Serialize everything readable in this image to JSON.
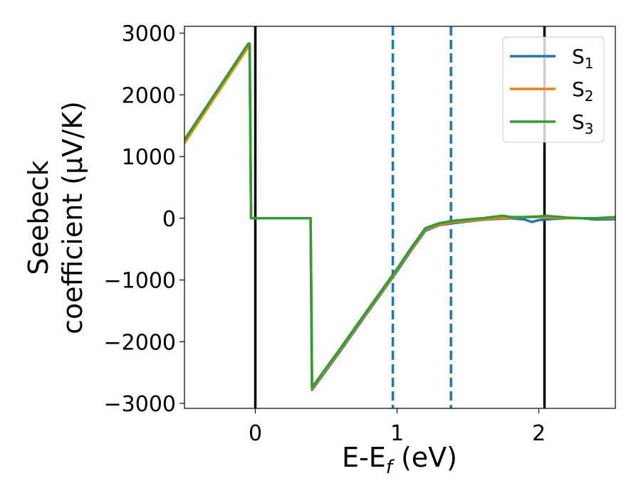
{
  "chart_data": {
    "type": "line",
    "title": "",
    "xlabel": "E-E_f (eV)",
    "ylabel_lines": [
      "Seebeck",
      "coefficient  (μV/K)"
    ],
    "xlim": [
      -0.5,
      2.54
    ],
    "ylim": [
      -3080,
      3110
    ],
    "xticks": [
      0,
      1,
      2
    ],
    "yticks": [
      -3000,
      -2000,
      -1000,
      0,
      1000,
      2000,
      3000
    ],
    "grid": false,
    "legend_position": "top-right",
    "legend_entries": [
      {
        "base": "S",
        "sub": "1",
        "color": "#1f77b4"
      },
      {
        "base": "S",
        "sub": "2",
        "color": "#ff7f0e"
      },
      {
        "base": "S",
        "sub": "3",
        "color": "#2ca02c"
      }
    ],
    "vertical_lines": [
      {
        "x": 0.0,
        "style": "solid",
        "color": "#000000"
      },
      {
        "x": 0.97,
        "style": "dashed",
        "color": "#1f77b4"
      },
      {
        "x": 1.38,
        "style": "dashed",
        "color": "#1f77b4"
      },
      {
        "x": 2.04,
        "style": "solid",
        "color": "#000000"
      }
    ],
    "series": [
      {
        "name": "S1",
        "color": "#1f77b4",
        "points": [
          [
            -0.5,
            1230
          ],
          [
            -0.05,
            2800
          ],
          [
            -0.04,
            2800
          ],
          [
            -0.03,
            0
          ],
          [
            0.39,
            0
          ],
          [
            0.4,
            -2780
          ],
          [
            0.6,
            -2150
          ],
          [
            0.8,
            -1500
          ],
          [
            1.0,
            -860
          ],
          [
            1.1,
            -520
          ],
          [
            1.2,
            -200
          ],
          [
            1.3,
            -110
          ],
          [
            1.4,
            -80
          ],
          [
            1.5,
            -50
          ],
          [
            1.6,
            -25
          ],
          [
            1.7,
            -10
          ],
          [
            1.8,
            0
          ],
          [
            1.9,
            -20
          ],
          [
            1.95,
            -60
          ],
          [
            2.0,
            -30
          ],
          [
            2.1,
            -10
          ],
          [
            2.2,
            0
          ],
          [
            2.3,
            0
          ],
          [
            2.4,
            -20
          ],
          [
            2.54,
            -15
          ]
        ]
      },
      {
        "name": "S2",
        "color": "#ff7f0e",
        "points": [
          [
            -0.5,
            1220
          ],
          [
            -0.05,
            2780
          ],
          [
            -0.04,
            2780
          ],
          [
            -0.03,
            0
          ],
          [
            0.39,
            0
          ],
          [
            0.4,
            -2760
          ],
          [
            0.6,
            -2130
          ],
          [
            0.8,
            -1480
          ],
          [
            1.0,
            -840
          ],
          [
            1.1,
            -500
          ],
          [
            1.2,
            -180
          ],
          [
            1.3,
            -100
          ],
          [
            1.4,
            -60
          ],
          [
            1.5,
            -40
          ],
          [
            1.6,
            -20
          ],
          [
            1.7,
            0
          ],
          [
            1.8,
            10
          ],
          [
            1.9,
            20
          ],
          [
            2.0,
            20
          ],
          [
            2.1,
            10
          ],
          [
            2.2,
            0
          ],
          [
            2.3,
            0
          ],
          [
            2.4,
            0
          ],
          [
            2.54,
            5
          ]
        ]
      },
      {
        "name": "S3",
        "color": "#2ca02c",
        "points": [
          [
            -0.5,
            1270
          ],
          [
            -0.05,
            2830
          ],
          [
            -0.04,
            2830
          ],
          [
            -0.03,
            0
          ],
          [
            0.39,
            0
          ],
          [
            0.4,
            -2740
          ],
          [
            0.6,
            -2110
          ],
          [
            0.8,
            -1460
          ],
          [
            1.0,
            -820
          ],
          [
            1.1,
            -480
          ],
          [
            1.2,
            -160
          ],
          [
            1.3,
            -80
          ],
          [
            1.4,
            -40
          ],
          [
            1.5,
            -20
          ],
          [
            1.6,
            0
          ],
          [
            1.7,
            30
          ],
          [
            1.75,
            40
          ],
          [
            1.8,
            20
          ],
          [
            1.9,
            20
          ],
          [
            2.0,
            30
          ],
          [
            2.05,
            40
          ],
          [
            2.1,
            30
          ],
          [
            2.2,
            10
          ],
          [
            2.3,
            0
          ],
          [
            2.4,
            0
          ],
          [
            2.54,
            20
          ]
        ]
      }
    ]
  }
}
